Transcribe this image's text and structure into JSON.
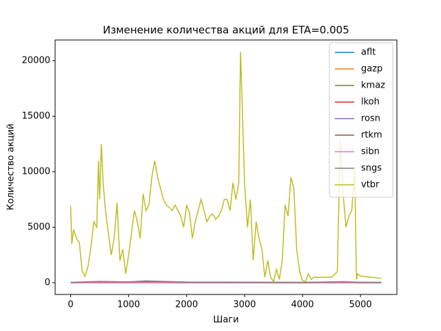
{
  "chart_data": {
    "type": "line",
    "title": "Изменение количества акций для ETA=0.005",
    "x_label": "Шаги",
    "y_label": "Количество акций",
    "xlim": [
      -268,
      5628
    ],
    "ylim": [
      -1056,
      21863
    ],
    "xticks": [
      0,
      1000,
      2000,
      3000,
      4000,
      5000
    ],
    "yticks": [
      0,
      5000,
      10000,
      15000,
      20000
    ],
    "legend": "upper right",
    "series": [
      {
        "name": "aflt",
        "color": "#1f77b4",
        "x": [
          0,
          500,
          1000,
          1300,
          2000,
          3000,
          4000,
          4700,
          5000,
          5360
        ],
        "values": [
          10,
          20,
          15,
          30,
          10,
          10,
          5,
          15,
          10,
          10
        ]
      },
      {
        "name": "gazp",
        "color": "#ff7f0e",
        "x": [
          0,
          500,
          1000,
          1300,
          2000,
          3000,
          4000,
          4700,
          5000,
          5360
        ],
        "values": [
          5,
          10,
          8,
          12,
          6,
          5,
          4,
          6,
          5,
          5
        ]
      },
      {
        "name": "kmaz",
        "color": "#2ca02c",
        "x": [
          0,
          500,
          1000,
          1300,
          2000,
          3000,
          4000,
          4700,
          5000,
          5360
        ],
        "values": [
          15,
          30,
          25,
          40,
          20,
          15,
          10,
          20,
          15,
          10
        ]
      },
      {
        "name": "lkoh",
        "color": "#d62728",
        "x": [
          0,
          500,
          1000,
          1300,
          2000,
          3000,
          4000,
          4700,
          5000,
          5360
        ],
        "values": [
          2,
          3,
          2,
          4,
          2,
          2,
          1,
          2,
          2,
          2
        ]
      },
      {
        "name": "rosn",
        "color": "#9467bd",
        "x": [
          0,
          500,
          1000,
          1300,
          2000,
          3000,
          4000,
          4700,
          5000,
          5360
        ],
        "values": [
          20,
          80,
          60,
          150,
          40,
          30,
          20,
          60,
          30,
          20
        ]
      },
      {
        "name": "rtkm",
        "color": "#8c564b",
        "x": [
          0,
          500,
          1000,
          1300,
          2000,
          3000,
          4000,
          4700,
          5000,
          5360
        ],
        "values": [
          10,
          40,
          30,
          60,
          20,
          20,
          10,
          30,
          20,
          10
        ]
      },
      {
        "name": "sibn",
        "color": "#e377c2",
        "x": [
          0,
          500,
          1000,
          1300,
          2000,
          3000,
          4000,
          4700,
          5000,
          5360
        ],
        "values": [
          5,
          20,
          15,
          30,
          10,
          10,
          5,
          15,
          10,
          5
        ]
      },
      {
        "name": "sngs",
        "color": "#7f7f7f",
        "x": [
          0,
          500,
          1000,
          1300,
          2000,
          3000,
          4000,
          4700,
          5000,
          5360
        ],
        "values": [
          30,
          120,
          80,
          160,
          60,
          50,
          30,
          90,
          40,
          30
        ]
      },
      {
        "name": "vtbr",
        "color": "#bcbd22",
        "x": [
          0,
          20,
          50,
          100,
          150,
          200,
          250,
          300,
          350,
          400,
          450,
          480,
          500,
          530,
          560,
          600,
          650,
          700,
          750,
          800,
          850,
          900,
          950,
          1000,
          1050,
          1100,
          1150,
          1200,
          1250,
          1300,
          1350,
          1400,
          1450,
          1500,
          1550,
          1600,
          1650,
          1700,
          1750,
          1800,
          1850,
          1900,
          1950,
          2000,
          2050,
          2100,
          2150,
          2200,
          2250,
          2300,
          2350,
          2400,
          2450,
          2500,
          2550,
          2600,
          2650,
          2700,
          2750,
          2800,
          2850,
          2900,
          2930,
          2960,
          3000,
          3050,
          3100,
          3150,
          3200,
          3250,
          3300,
          3350,
          3400,
          3450,
          3500,
          3550,
          3600,
          3650,
          3700,
          3750,
          3800,
          3850,
          3900,
          3950,
          4000,
          4050,
          4100,
          4150,
          4200,
          4500,
          4600,
          4650,
          4700,
          4750,
          4800,
          4850,
          4900,
          4930,
          4950,
          5000,
          5360
        ],
        "values": [
          6900,
          3500,
          4800,
          4000,
          3600,
          1000,
          600,
          1500,
          3200,
          5500,
          5000,
          11000,
          7500,
          12500,
          9000,
          6500,
          4500,
          2500,
          4000,
          7200,
          2000,
          3000,
          800,
          2500,
          4500,
          6500,
          5500,
          4000,
          8000,
          6500,
          7000,
          9500,
          11000,
          9500,
          8500,
          7500,
          7000,
          6800,
          6500,
          7000,
          6500,
          6000,
          5000,
          7000,
          6300,
          4000,
          5500,
          6500,
          7500,
          6500,
          5500,
          6000,
          6200,
          5700,
          6000,
          6500,
          7500,
          7500,
          6500,
          9000,
          7500,
          9000,
          20800,
          16000,
          9000,
          5000,
          7500,
          2000,
          5500,
          4000,
          3000,
          500,
          2000,
          500,
          100,
          1200,
          300,
          2000,
          7000,
          6000,
          9500,
          8500,
          3000,
          1000,
          200,
          100,
          800,
          300,
          500,
          500,
          1000,
          12800,
          8000,
          5000,
          6000,
          6500,
          10500,
          300,
          800,
          600,
          400
        ]
      }
    ]
  }
}
